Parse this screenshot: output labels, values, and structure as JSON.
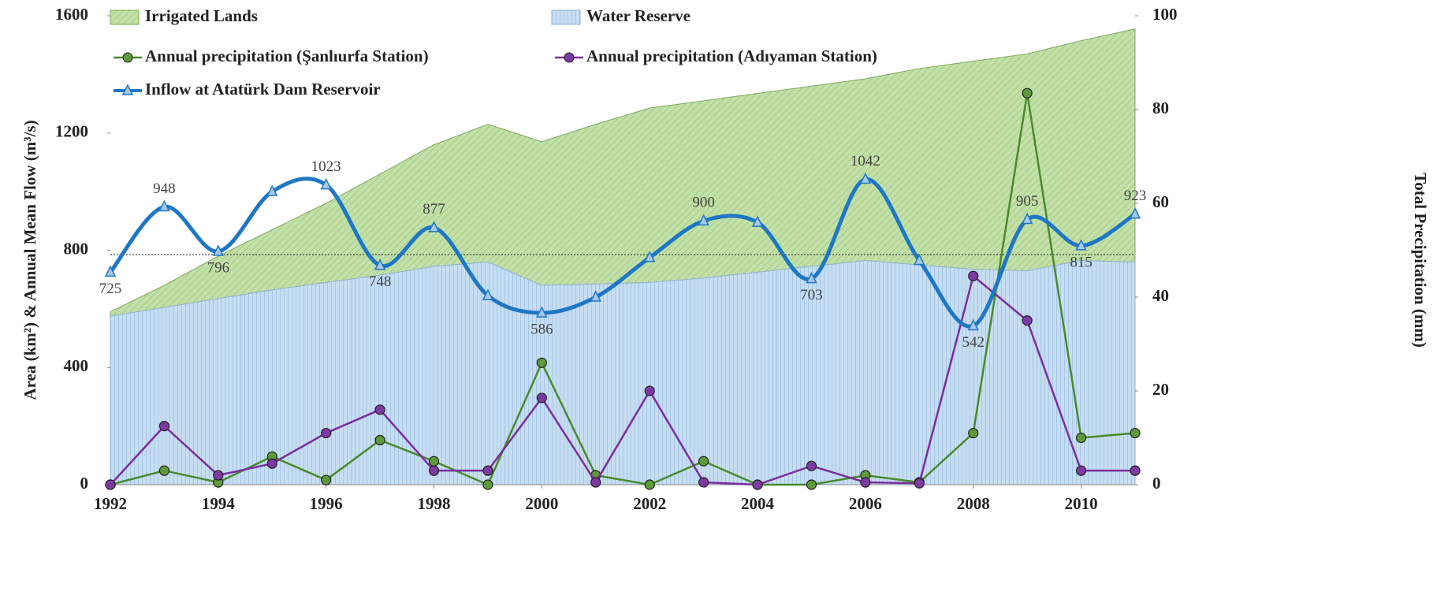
{
  "chart_data": {
    "type": "area-line",
    "y_label": "Area (km²) & Annual Mean Flow (m³/s)",
    "y2_label": "Total Precipitation (mm)",
    "x": [
      1992,
      1993,
      1994,
      1995,
      1996,
      1997,
      1998,
      1999,
      2000,
      2001,
      2002,
      2003,
      2004,
      2005,
      2006,
      2007,
      2008,
      2009,
      2010,
      2011
    ],
    "xlim": [
      1992,
      2011
    ],
    "xticks": [
      1992,
      1994,
      1996,
      1998,
      2000,
      2002,
      2004,
      2006,
      2008,
      2010
    ],
    "ylim": [
      0,
      1600
    ],
    "yticks": [
      0,
      400,
      800,
      1200,
      1600
    ],
    "y2lim": [
      0,
      100
    ],
    "y2ticks": [
      0,
      20,
      40,
      60,
      80,
      100
    ],
    "reference_line": 785,
    "series": [
      {
        "name": "Irrigated Lands",
        "kind": "area",
        "color": "#b5d89a",
        "values": [
          590,
          680,
          780,
          870,
          960,
          1060,
          1160,
          1230,
          1170,
          1230,
          1285,
          1310,
          1335,
          1360,
          1385,
          1420,
          1445,
          1470,
          1515,
          1555
        ]
      },
      {
        "name": "Water Reserve",
        "kind": "area",
        "color": "#bcd6ee",
        "values": [
          575,
          605,
          635,
          665,
          690,
          715,
          745,
          760,
          680,
          685,
          690,
          705,
          725,
          745,
          765,
          750,
          735,
          730,
          765,
          760
        ]
      },
      {
        "name": "Annual precipitation (Şanlıurfa Station)",
        "kind": "line",
        "axis": "y2",
        "color": "#4a8a2c",
        "marker_color": "#5e9a3a",
        "values": [
          0,
          3,
          0.5,
          6,
          1,
          9.5,
          5,
          0,
          26,
          2,
          0,
          5,
          0,
          0,
          2,
          0.5,
          11,
          83.5,
          10,
          11
        ]
      },
      {
        "name": "Annual precipitation (Adıyaman Station)",
        "kind": "line",
        "axis": "y2",
        "color": "#7a2e9e",
        "marker_color": "#7d3aa3",
        "values": [
          0,
          12.5,
          2,
          4.5,
          11,
          16,
          3,
          3,
          18.5,
          0.5,
          20,
          0.5,
          0,
          4,
          0.5,
          0.3,
          44.5,
          35,
          3,
          3
        ]
      },
      {
        "name": "Inflow at Atatürk Dam Reservoir",
        "kind": "smooth",
        "color": "#1f77c4",
        "marker_color": "#a9c8e8",
        "values": [
          725,
          948,
          796,
          1000,
          1023,
          748,
          877,
          645,
          586,
          640,
          775,
          900,
          895,
          703,
          1042,
          765,
          542,
          905,
          815,
          923
        ],
        "value_labels": [
          "725",
          "948",
          "796",
          null,
          "1023",
          "748",
          "877",
          null,
          "586",
          null,
          null,
          "900",
          null,
          "703",
          "1042",
          null,
          "542",
          "905",
          "815",
          "923"
        ]
      }
    ]
  }
}
